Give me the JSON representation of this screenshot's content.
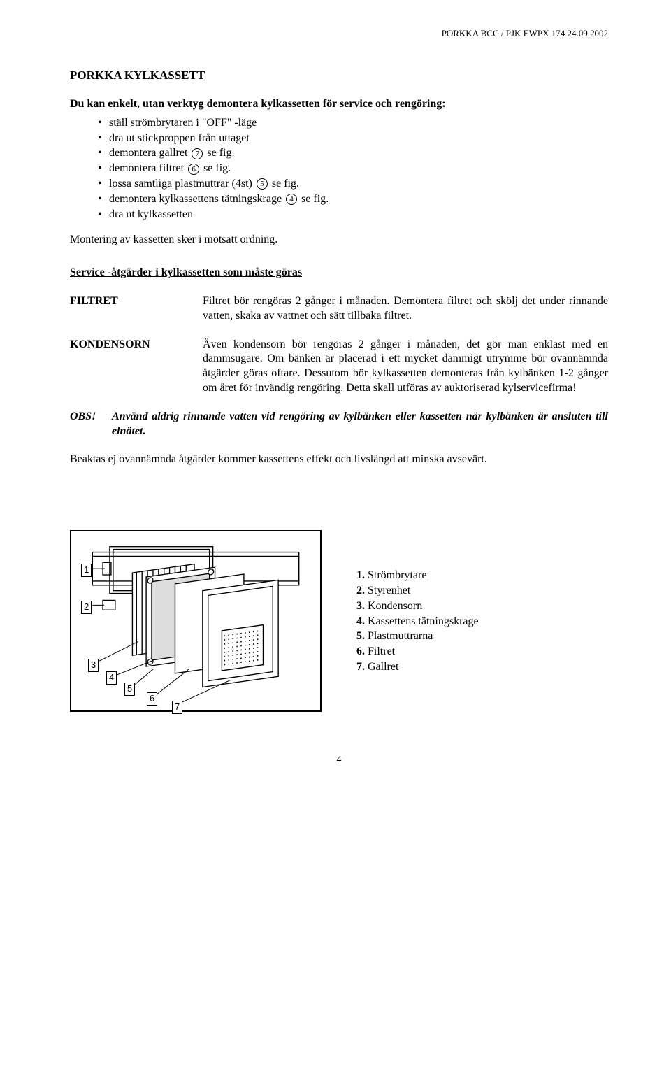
{
  "header": "PORKKA BCC / PJK  EWPX 174  24.09.2002",
  "title": "PORKKA KYLKASSETT",
  "intro": "Du kan enkelt, utan verktyg demontera kylkassetten för service och rengöring:",
  "bullets": [
    {
      "text_a": "ställ strömbrytaren i \"OFF\" -läge",
      "num": null,
      "text_b": ""
    },
    {
      "text_a": "dra ut stickproppen från uttaget",
      "num": null,
      "text_b": ""
    },
    {
      "text_a": "demontera gallret ",
      "num": "7",
      "text_b": " se fig."
    },
    {
      "text_a": "demontera filtret ",
      "num": "6",
      "text_b": " se fig."
    },
    {
      "text_a": "lossa samtliga plastmuttrar (4st) ",
      "num": "5",
      "text_b": " se fig."
    },
    {
      "text_a": "demontera kylkassettens tätningskrage ",
      "num": "4",
      "text_b": " se fig."
    },
    {
      "text_a": "dra ut kylkassetten",
      "num": null,
      "text_b": ""
    }
  ],
  "montering": "Montering av kassetten sker i motsatt ordning.",
  "serviceTitle": "Service -åtgärder i kylkassetten som måste göras",
  "filtret": {
    "term": "FILTRET",
    "body": "Filtret bör rengöras 2 gånger i månaden. Demontera filtret och skölj det under rinnande vatten, skaka av vattnet och sätt tillbaka filtret."
  },
  "kondensorn": {
    "term": "KONDENSORN",
    "body": "Även kondensorn bör rengöras 2 gånger i månaden, det gör man enklast med en dammsugare. Om bänken är placerad i ett mycket dammigt utrymme bör ovannämnda åtgärder göras oftare. Dessutom bör kylkassetten demonteras från kylbänken 1-2 gånger om året för invändig rengöring. Detta skall utföras av auktoriserad kylservicefirma!"
  },
  "obs": {
    "term": "OBS!",
    "body": "Använd aldrig rinnande vatten vid rengöring av kylbänken eller kassetten när kylbänken är ansluten till elnätet."
  },
  "closing": "Beaktas ej ovannämnda åtgärder kommer kassettens effekt och livslängd att minska avsevärt.",
  "legend": [
    {
      "n": "1.",
      "t": "Strömbrytare"
    },
    {
      "n": "2.",
      "t": "Styrenhet"
    },
    {
      "n": "3.",
      "t": "Kondensorn"
    },
    {
      "n": "4.",
      "t": "Kassettens tätningskrage"
    },
    {
      "n": "5.",
      "t": "Plastmuttrarna"
    },
    {
      "n": "6.",
      "t": "Filtret"
    },
    {
      "n": "7.",
      "t": "Gallret"
    }
  ],
  "diagramLabels": [
    "1",
    "2",
    "3",
    "4",
    "5",
    "6",
    "7"
  ],
  "pageNum": "4"
}
